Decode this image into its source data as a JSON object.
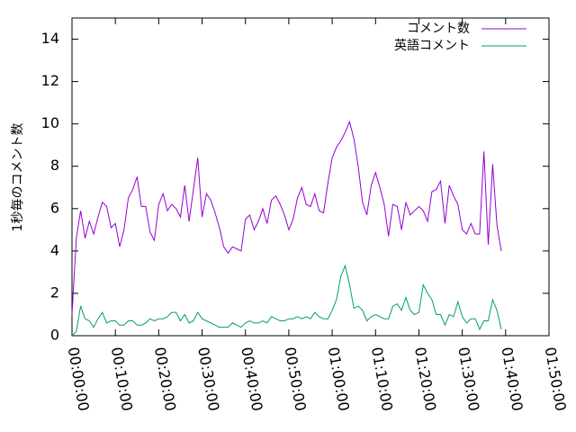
{
  "chart_data": {
    "type": "line",
    "title": "",
    "xlabel": "",
    "ylabel": "1秒毎のコメント数",
    "xlim": [
      0,
      6600
    ],
    "ylim": [
      0,
      15
    ],
    "grid": false,
    "legend_position": "top-right",
    "x_ticks": [
      {
        "value": 0,
        "label": "00:00:00"
      },
      {
        "value": 600,
        "label": "00:10:00"
      },
      {
        "value": 1200,
        "label": "00:20:00"
      },
      {
        "value": 1800,
        "label": "00:30:00"
      },
      {
        "value": 2400,
        "label": "00:40:00"
      },
      {
        "value": 3000,
        "label": "00:50:00"
      },
      {
        "value": 3600,
        "label": "01:00:00"
      },
      {
        "value": 4200,
        "label": "01:10:00"
      },
      {
        "value": 4800,
        "label": "01:20:00"
      },
      {
        "value": 5400,
        "label": "01:30:00"
      },
      {
        "value": 6000,
        "label": "01:40:00"
      },
      {
        "value": 6600,
        "label": "01:50:00"
      }
    ],
    "y_ticks": [
      {
        "value": 0,
        "label": "0"
      },
      {
        "value": 2,
        "label": "2"
      },
      {
        "value": 4,
        "label": "4"
      },
      {
        "value": 6,
        "label": "6"
      },
      {
        "value": 8,
        "label": "8"
      },
      {
        "value": 10,
        "label": "10"
      },
      {
        "value": 12,
        "label": "12"
      },
      {
        "value": 14,
        "label": "14"
      }
    ],
    "series": [
      {
        "name": "コメント数",
        "color": "#9400d3",
        "points": [
          [
            0,
            1.0
          ],
          [
            60,
            4.6
          ],
          [
            120,
            5.9
          ],
          [
            180,
            4.6
          ],
          [
            240,
            5.4
          ],
          [
            300,
            4.8
          ],
          [
            360,
            5.6
          ],
          [
            420,
            6.3
          ],
          [
            480,
            6.1
          ],
          [
            540,
            5.1
          ],
          [
            600,
            5.3
          ],
          [
            660,
            4.2
          ],
          [
            720,
            5.0
          ],
          [
            780,
            6.5
          ],
          [
            840,
            6.9
          ],
          [
            900,
            7.5
          ],
          [
            960,
            6.1
          ],
          [
            1020,
            6.1
          ],
          [
            1080,
            4.9
          ],
          [
            1140,
            4.5
          ],
          [
            1200,
            6.2
          ],
          [
            1260,
            6.7
          ],
          [
            1320,
            5.9
          ],
          [
            1380,
            6.2
          ],
          [
            1440,
            6.0
          ],
          [
            1500,
            5.6
          ],
          [
            1560,
            7.1
          ],
          [
            1620,
            5.4
          ],
          [
            1680,
            6.9
          ],
          [
            1740,
            8.4
          ],
          [
            1800,
            5.6
          ],
          [
            1860,
            6.7
          ],
          [
            1920,
            6.4
          ],
          [
            1980,
            5.8
          ],
          [
            2040,
            5.1
          ],
          [
            2100,
            4.2
          ],
          [
            2160,
            3.9
          ],
          [
            2220,
            4.2
          ],
          [
            2280,
            4.1
          ],
          [
            2340,
            4.0
          ],
          [
            2400,
            5.5
          ],
          [
            2460,
            5.7
          ],
          [
            2520,
            5.0
          ],
          [
            2580,
            5.4
          ],
          [
            2640,
            6.0
          ],
          [
            2700,
            5.3
          ],
          [
            2760,
            6.4
          ],
          [
            2820,
            6.6
          ],
          [
            2880,
            6.2
          ],
          [
            2940,
            5.7
          ],
          [
            3000,
            5.0
          ],
          [
            3060,
            5.5
          ],
          [
            3120,
            6.5
          ],
          [
            3180,
            7.0
          ],
          [
            3240,
            6.2
          ],
          [
            3300,
            6.1
          ],
          [
            3360,
            6.7
          ],
          [
            3420,
            5.9
          ],
          [
            3480,
            5.8
          ],
          [
            3540,
            7.2
          ],
          [
            3600,
            8.4
          ],
          [
            3660,
            8.9
          ],
          [
            3720,
            9.2
          ],
          [
            3780,
            9.6
          ],
          [
            3840,
            10.1
          ],
          [
            3900,
            9.3
          ],
          [
            3960,
            8.0
          ],
          [
            4020,
            6.3
          ],
          [
            4080,
            5.7
          ],
          [
            4140,
            7.1
          ],
          [
            4200,
            7.7
          ],
          [
            4260,
            7.0
          ],
          [
            4320,
            6.2
          ],
          [
            4380,
            4.7
          ],
          [
            4440,
            6.2
          ],
          [
            4500,
            6.1
          ],
          [
            4560,
            5.0
          ],
          [
            4620,
            6.3
          ],
          [
            4680,
            5.7
          ],
          [
            4740,
            5.9
          ],
          [
            4800,
            6.1
          ],
          [
            4860,
            5.9
          ],
          [
            4920,
            5.4
          ],
          [
            4980,
            6.8
          ],
          [
            5040,
            6.9
          ],
          [
            5100,
            7.3
          ],
          [
            5160,
            5.3
          ],
          [
            5220,
            7.1
          ],
          [
            5280,
            6.6
          ],
          [
            5340,
            6.2
          ],
          [
            5400,
            5.0
          ],
          [
            5460,
            4.8
          ],
          [
            5520,
            5.3
          ],
          [
            5580,
            4.8
          ],
          [
            5640,
            4.8
          ],
          [
            5700,
            8.7
          ],
          [
            5760,
            4.3
          ],
          [
            5820,
            8.1
          ],
          [
            5880,
            5.2
          ],
          [
            5940,
            4.0
          ]
        ]
      },
      {
        "name": "英語コメント",
        "color": "#009e73",
        "points": [
          [
            0,
            0.0
          ],
          [
            60,
            0.2
          ],
          [
            120,
            1.4
          ],
          [
            180,
            0.8
          ],
          [
            240,
            0.7
          ],
          [
            300,
            0.4
          ],
          [
            360,
            0.8
          ],
          [
            420,
            1.1
          ],
          [
            480,
            0.6
          ],
          [
            540,
            0.7
          ],
          [
            600,
            0.7
          ],
          [
            660,
            0.5
          ],
          [
            720,
            0.5
          ],
          [
            780,
            0.7
          ],
          [
            840,
            0.7
          ],
          [
            900,
            0.5
          ],
          [
            960,
            0.5
          ],
          [
            1020,
            0.6
          ],
          [
            1080,
            0.8
          ],
          [
            1140,
            0.7
          ],
          [
            1200,
            0.8
          ],
          [
            1260,
            0.8
          ],
          [
            1320,
            0.9
          ],
          [
            1380,
            1.1
          ],
          [
            1440,
            1.1
          ],
          [
            1500,
            0.7
          ],
          [
            1560,
            1.0
          ],
          [
            1620,
            0.6
          ],
          [
            1680,
            0.7
          ],
          [
            1740,
            1.1
          ],
          [
            1800,
            0.8
          ],
          [
            1860,
            0.7
          ],
          [
            1920,
            0.6
          ],
          [
            1980,
            0.5
          ],
          [
            2040,
            0.4
          ],
          [
            2100,
            0.4
          ],
          [
            2160,
            0.4
          ],
          [
            2220,
            0.6
          ],
          [
            2280,
            0.5
          ],
          [
            2340,
            0.4
          ],
          [
            2400,
            0.6
          ],
          [
            2460,
            0.7
          ],
          [
            2520,
            0.6
          ],
          [
            2580,
            0.6
          ],
          [
            2640,
            0.7
          ],
          [
            2700,
            0.6
          ],
          [
            2760,
            0.9
          ],
          [
            2820,
            0.8
          ],
          [
            2880,
            0.7
          ],
          [
            2940,
            0.7
          ],
          [
            3000,
            0.8
          ],
          [
            3060,
            0.8
          ],
          [
            3120,
            0.9
          ],
          [
            3180,
            0.8
          ],
          [
            3240,
            0.9
          ],
          [
            3300,
            0.8
          ],
          [
            3360,
            1.1
          ],
          [
            3420,
            0.9
          ],
          [
            3480,
            0.8
          ],
          [
            3540,
            0.8
          ],
          [
            3600,
            1.2
          ],
          [
            3660,
            1.7
          ],
          [
            3720,
            2.8
          ],
          [
            3780,
            3.3
          ],
          [
            3840,
            2.4
          ],
          [
            3900,
            1.3
          ],
          [
            3960,
            1.4
          ],
          [
            4020,
            1.2
          ],
          [
            4080,
            0.7
          ],
          [
            4140,
            0.9
          ],
          [
            4200,
            1.0
          ],
          [
            4260,
            0.9
          ],
          [
            4320,
            0.8
          ],
          [
            4380,
            0.8
          ],
          [
            4440,
            1.4
          ],
          [
            4500,
            1.5
          ],
          [
            4560,
            1.2
          ],
          [
            4620,
            1.8
          ],
          [
            4680,
            1.2
          ],
          [
            4740,
            1.0
          ],
          [
            4800,
            1.1
          ],
          [
            4860,
            2.4
          ],
          [
            4920,
            2.0
          ],
          [
            4980,
            1.7
          ],
          [
            5040,
            1.0
          ],
          [
            5100,
            1.0
          ],
          [
            5160,
            0.5
          ],
          [
            5220,
            1.0
          ],
          [
            5280,
            0.9
          ],
          [
            5340,
            1.6
          ],
          [
            5400,
            0.9
          ],
          [
            5460,
            0.6
          ],
          [
            5520,
            0.8
          ],
          [
            5580,
            0.8
          ],
          [
            5640,
            0.3
          ],
          [
            5700,
            0.7
          ],
          [
            5760,
            0.7
          ],
          [
            5820,
            1.7
          ],
          [
            5880,
            1.2
          ],
          [
            5940,
            0.3
          ]
        ]
      }
    ]
  }
}
